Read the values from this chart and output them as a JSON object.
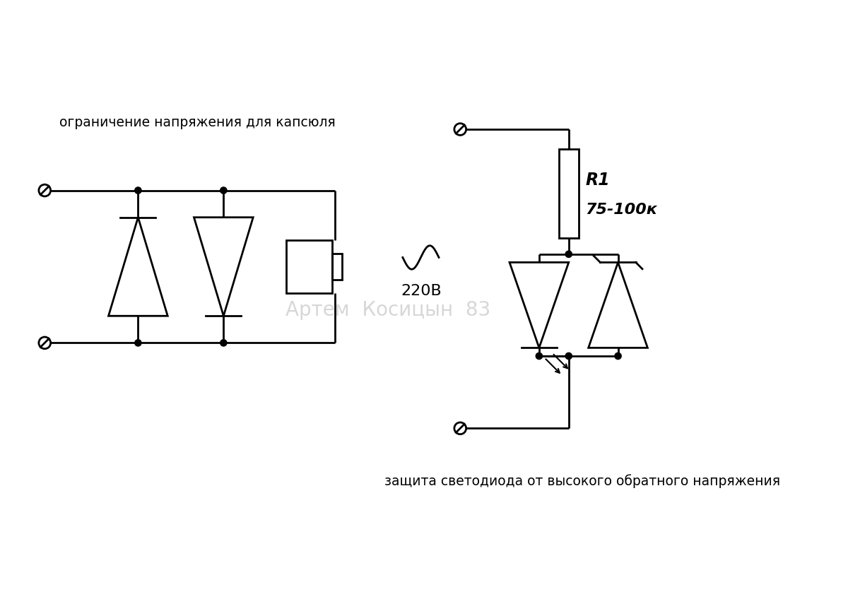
{
  "bg_color": "#ffffff",
  "line_color": "#000000",
  "line_width": 1.8,
  "text_color": "#000000",
  "label_left": "ограничение напряжения для капсюля",
  "label_right": "защита светодиода от высокого обратного напряжения",
  "label_220": "220В",
  "label_R1": "R1",
  "label_R1_val": "75-100к",
  "watermark": "Артем  Косицын  83"
}
